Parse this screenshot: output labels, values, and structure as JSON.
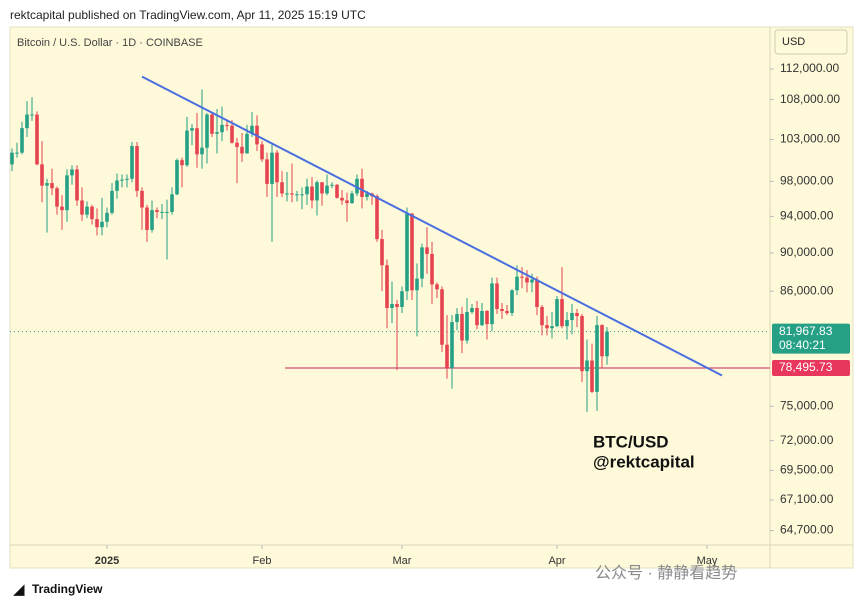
{
  "header": "rektcapital published on TradingView.com, Apr 11, 2025 15:19 UTC",
  "chart_data": {
    "type": "candlestick",
    "title": "Bitcoin / U.S. Dollar · 1D · COINBASE",
    "currency": "USD",
    "open": [
      100000,
      101400,
      101400,
      104400,
      106100,
      106100,
      100000,
      97500,
      97800,
      97200,
      95100,
      94700,
      98700,
      99400,
      95800,
      94200,
      95100,
      93700,
      92800,
      93400,
      94400,
      96900,
      98100,
      98200,
      98300,
      102200,
      96900,
      95000,
      92500,
      94700,
      94500,
      94500,
      94500,
      96500,
      100500,
      99900,
      104100,
      104400,
      101200,
      102000,
      106100,
      103700,
      103900,
      104800,
      104700,
      102600,
      102100,
      101300,
      103700,
      104700,
      102400,
      100600,
      97700,
      101400,
      97900,
      96600,
      96600,
      96500,
      96500,
      96500,
      97400,
      95800,
      97900,
      96600,
      97500,
      97600,
      96100,
      95800,
      95500,
      96600,
      98300,
      96200,
      96600,
      96300,
      91500,
      88700,
      84300,
      84700,
      84400,
      86000,
      94300,
      86100,
      87300,
      90600,
      89900,
      86700,
      86200,
      80700,
      78500,
      82900,
      83700,
      81100,
      83900,
      84300,
      82600,
      84000,
      82700,
      86800,
      84200,
      84000,
      83800,
      86100,
      87500,
      87400,
      86900,
      87200,
      84400,
      82600,
      82300,
      82500,
      85200,
      82500,
      83100,
      83800,
      83500,
      78200,
      79200,
      76300,
      82600,
      79600
    ],
    "high": [
      101900,
      102600,
      105200,
      107800,
      108300,
      106500,
      102800,
      98300,
      99500,
      97400,
      96400,
      99400,
      99900,
      99900,
      97300,
      95700,
      95300,
      94900,
      96100,
      95000,
      97800,
      98900,
      98800,
      98800,
      102700,
      102700,
      97300,
      95300,
      95800,
      95000,
      95400,
      95900,
      97300,
      100700,
      100800,
      105800,
      104900,
      106300,
      109300,
      106300,
      106400,
      106800,
      107100,
      105300,
      105400,
      103200,
      103800,
      104800,
      106400,
      106000,
      102800,
      101400,
      102500,
      101700,
      99200,
      99100,
      100100,
      96900,
      97300,
      98300,
      98500,
      98100,
      97900,
      98800,
      97900,
      97700,
      97000,
      96700,
      96900,
      98800,
      99500,
      96900,
      96700,
      96500,
      92500,
      89300,
      87000,
      85100,
      86500,
      95000,
      94400,
      88900,
      91000,
      92800,
      91200,
      86900,
      86500,
      83600,
      83600,
      84300,
      84400,
      85300,
      84700,
      85000,
      84800,
      84100,
      87400,
      87400,
      84800,
      84600,
      86200,
      88700,
      88500,
      88200,
      87800,
      87500,
      84600,
      83500,
      83900,
      85500,
      88500,
      83900,
      84700,
      84200,
      83700,
      81200,
      80800,
      83500,
      82700,
      82400
    ],
    "low": [
      99200,
      100800,
      101200,
      103300,
      105300,
      99900,
      95600,
      92200,
      96400,
      94200,
      92500,
      93400,
      97600,
      95200,
      93500,
      93800,
      93100,
      91900,
      91900,
      92800,
      94200,
      96000,
      97300,
      97300,
      97900,
      96200,
      92500,
      91200,
      92200,
      93800,
      93700,
      89300,
      94200,
      96400,
      97300,
      99700,
      102300,
      99600,
      99500,
      100100,
      103300,
      101300,
      102800,
      104100,
      102500,
      97800,
      100300,
      101300,
      103300,
      101600,
      100300,
      96200,
      91200,
      96200,
      96200,
      95700,
      95600,
      95700,
      94800,
      95300,
      94900,
      94100,
      95200,
      96400,
      97200,
      96000,
      95300,
      93400,
      95400,
      96300,
      94900,
      95800,
      95300,
      91200,
      86000,
      82300,
      82800,
      78300,
      83800,
      85100,
      85100,
      81500,
      86400,
      87800,
      84700,
      85300,
      80000,
      77500,
      76600,
      82100,
      79900,
      80800,
      83700,
      82200,
      82500,
      81200,
      82000,
      83700,
      83200,
      83600,
      83500,
      85600,
      86300,
      85900,
      85900,
      83600,
      81600,
      81600,
      81300,
      82400,
      82300,
      81200,
      81700,
      82400,
      77200,
      74500,
      76200,
      74600,
      78500,
      78800
    ],
    "close": [
      101400,
      101400,
      104400,
      106100,
      106100,
      100000,
      97500,
      97800,
      97200,
      95100,
      94700,
      98700,
      99400,
      95800,
      94200,
      95100,
      93700,
      92800,
      93400,
      94400,
      96900,
      98100,
      98200,
      98300,
      102200,
      96900,
      95000,
      92500,
      94700,
      94500,
      94500,
      94500,
      96500,
      100500,
      99900,
      104100,
      104400,
      101200,
      102000,
      106100,
      103700,
      103900,
      104800,
      104700,
      102600,
      102100,
      101300,
      103700,
      104700,
      102400,
      100600,
      97700,
      101400,
      97900,
      96600,
      96600,
      96500,
      96500,
      96500,
      97400,
      95800,
      97900,
      96600,
      97500,
      97600,
      96100,
      95800,
      95500,
      96600,
      98300,
      96200,
      96600,
      96300,
      91500,
      88700,
      84300,
      84700,
      84400,
      86000,
      94300,
      86100,
      87300,
      90600,
      89900,
      86700,
      86200,
      80700,
      78500,
      82900,
      83700,
      81100,
      83900,
      84300,
      82600,
      84000,
      82700,
      86800,
      84200,
      84000,
      83800,
      86100,
      87500,
      87400,
      86900,
      87200,
      84400,
      82600,
      82300,
      82500,
      85200,
      82500,
      83100,
      83800,
      83500,
      78200,
      79200,
      76300,
      82600,
      79600,
      81967.83
    ],
    "up_color": "#26a085",
    "down_color": "#e5434f",
    "log_scale": true,
    "ylim": [
      63600,
      117600
    ],
    "yticks": [
      {
        "value": 112000,
        "label": "112,000.00"
      },
      {
        "value": 108000,
        "label": "108,000.00"
      },
      {
        "value": 103000,
        "label": "103,000.00"
      },
      {
        "value": 98000,
        "label": "98,000.00"
      },
      {
        "value": 94000,
        "label": "94,000.00"
      },
      {
        "value": 90000,
        "label": "90,000.00"
      },
      {
        "value": 86000,
        "label": "86,000.00"
      },
      {
        "value": 75000,
        "label": "75,000.00"
      },
      {
        "value": 72000,
        "label": "72,000.00"
      },
      {
        "value": 69500,
        "label": "69,500.00"
      },
      {
        "value": 67100,
        "label": "67,100.00"
      },
      {
        "value": 64700,
        "label": "64,700.00"
      }
    ],
    "xlim": [
      -0.4,
      151.6
    ],
    "xticks": [
      {
        "value": 19,
        "label": "2025"
      },
      {
        "value": 50,
        "label": "Feb"
      },
      {
        "value": 78,
        "label": "Mar"
      },
      {
        "value": 109,
        "label": "Apr"
      },
      {
        "value": 139,
        "label": "May"
      }
    ],
    "trendline": {
      "x": [
        26,
        142
      ],
      "y": [
        111000,
        77800
      ],
      "color": "#4a6ee0"
    },
    "level": {
      "value": 78495.73,
      "label": "78,495.73",
      "x_start": 54.6,
      "color": "#d0507a"
    },
    "last_price": {
      "value": 81967.83,
      "label": "81,967.83",
      "countdown": "08:40:21"
    },
    "annotations": [
      "BTC/USD",
      "@rektcapital"
    ]
  },
  "footer": "TradingView",
  "watermark": "公众号 · 静静看趋势"
}
